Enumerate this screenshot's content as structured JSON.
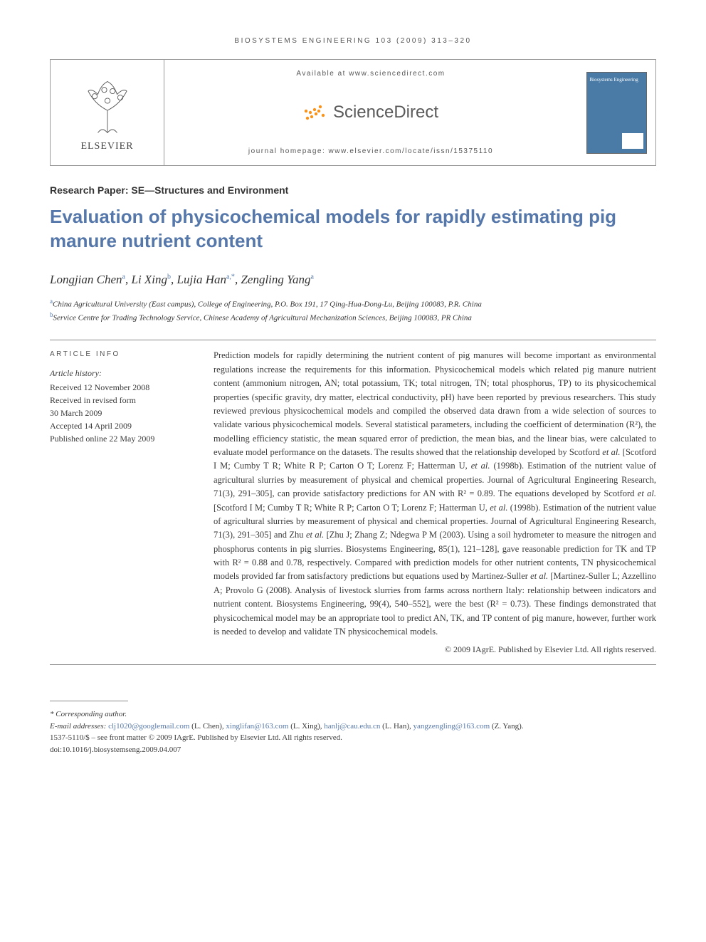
{
  "journal_ref": "BIOSYSTEMS ENGINEERING 103 (2009) 313–320",
  "header": {
    "available_at": "Available at www.sciencedirect.com",
    "sd_brand": "ScienceDirect",
    "homepage": "journal homepage: www.elsevier.com/locate/issn/15375110",
    "elsevier": "ELSEVIER",
    "cover_title": "Biosystems Engineering"
  },
  "section_label": "Research Paper: SE—Structures and Environment",
  "title": "Evaluation of physicochemical models for rapidly estimating pig manure nutrient content",
  "authors": [
    {
      "name": "Longjian Chen",
      "aff": "a"
    },
    {
      "name": "Li Xing",
      "aff": "b"
    },
    {
      "name": "Lujia Han",
      "aff": "a,*"
    },
    {
      "name": "Zengling Yang",
      "aff": "a"
    }
  ],
  "affiliations": [
    {
      "key": "a",
      "text": "China Agricultural University (East campus), College of Engineering, P.O. Box 191, 17 Qing-Hua-Dong-Lu, Beijing 100083, P.R. China"
    },
    {
      "key": "b",
      "text": "Service Centre for Trading Technology Service, Chinese Academy of Agricultural Mechanization Sciences, Beijing 100083, PR China"
    }
  ],
  "info_head": "ARTICLE INFO",
  "history": {
    "label": "Article history:",
    "lines": [
      "Received 12 November 2008",
      "Received in revised form",
      "30 March 2009",
      "Accepted 14 April 2009",
      "Published online 22 May 2009"
    ]
  },
  "abstract": "Prediction models for rapidly determining the nutrient content of pig manures will become important as environmental regulations increase the requirements for this information. Physicochemical models which related pig manure nutrient content (ammonium nitrogen, AN; total potassium, TK; total nitrogen, TN; total phosphorus, TP) to its physicochemical properties (specific gravity, dry matter, electrical conductivity, pH) have been reported by previous researchers. This study reviewed previous physicochemical models and compiled the observed data drawn from a wide selection of sources to validate various physicochemical models. Several statistical parameters, including the coefficient of determination (R²), the modelling efficiency statistic, the mean squared error of prediction, the mean bias, and the linear bias, were calculated to evaluate model performance on the datasets. The results showed that the relationship developed by Scotford et al. [Scotford I M; Cumby T R; White R P; Carton O T; Lorenz F; Hatterman U, et al. (1998b). Estimation of the nutrient value of agricultural slurries by measurement of physical and chemical properties. Journal of Agricultural Engineering Research, 71(3), 291–305], can provide satisfactory predictions for AN with R² = 0.89. The equations developed by Scotford et al. [Scotford I M; Cumby T R; White R P; Carton O T; Lorenz F; Hatterman U, et al. (1998b). Estimation of the nutrient value of agricultural slurries by measurement of physical and chemical properties. Journal of Agricultural Engineering Research, 71(3), 291–305] and Zhu et al. [Zhu J; Zhang Z; Ndegwa P M (2003). Using a soil hydrometer to measure the nitrogen and phosphorus contents in pig slurries. Biosystems Engineering, 85(1), 121–128], gave reasonable prediction for TK and TP with R² = 0.88 and 0.78, respectively. Compared with prediction models for other nutrient contents, TN physicochemical models provided far from satisfactory predictions but equations used by Martinez-Suller et al. [Martinez-Suller L; Azzellino A; Provolo G (2008). Analysis of livestock slurries from farms across northern Italy: relationship between indicators and nutrient content. Biosystems Engineering, 99(4), 540–552], were the best (R² = 0.73). These findings demonstrated that physicochemical model may be an appropriate tool to predict AN, TK, and TP content of pig manure, however, further work is needed to develop and validate TN physicochemical models.",
  "copyright": "© 2009 IAgrE. Published by Elsevier Ltd. All rights reserved.",
  "footnotes": {
    "corr": "* Corresponding author.",
    "email_label": "E-mail addresses:",
    "emails": [
      {
        "addr": "clj1020@googlemail.com",
        "who": "(L. Chen)"
      },
      {
        "addr": "xinglifan@163.com",
        "who": "(L. Xing)"
      },
      {
        "addr": "hanlj@cau.edu.cn",
        "who": "(L. Han)"
      },
      {
        "addr": "yangzengling@163.com",
        "who": "(Z. Yang)"
      }
    ],
    "issn": "1537-5110/$ – see front matter © 2009 IAgrE. Published by Elsevier Ltd. All rights reserved.",
    "doi": "doi:10.1016/j.biosystemseng.2009.04.007"
  },
  "colors": {
    "accent": "#5577aa",
    "sd_orange": "#f7941e",
    "cover_bg": "#4a7ba6",
    "text": "#3a3a3a"
  }
}
